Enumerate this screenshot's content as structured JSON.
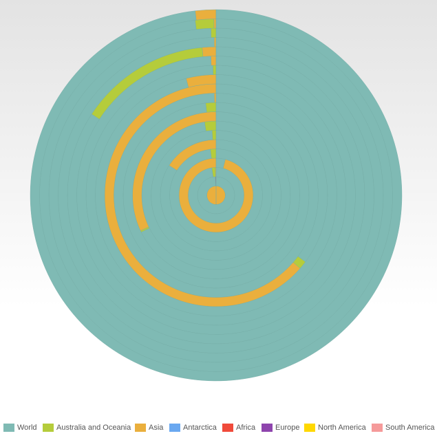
{
  "chart_data": {
    "type": "radial-stacked-bar",
    "categories": [
      null,
      null,
      null,
      null,
      null,
      null,
      null,
      null,
      null,
      null,
      null,
      null,
      null,
      null,
      null,
      null,
      null,
      null,
      null,
      null
    ],
    "series": [
      {
        "name": "World",
        "color": "#7fbab4",
        "values": [
          0,
          99.2,
          97.5,
          4,
          98,
          84,
          99,
          97.5,
          67.7,
          98.2,
          99.7,
          35.2,
          96,
          99.6,
          99.4,
          84.2,
          99.8,
          99.5,
          98.1,
          98.2
        ]
      },
      {
        "name": "Australia and Oceania",
        "color": "#b5cc3b",
        "values": [
          0,
          0,
          2,
          0,
          2,
          0,
          1,
          2.5,
          0.3,
          1.8,
          0,
          1.2,
          0,
          0.4,
          0,
          14.3,
          0,
          0.5,
          1.7,
          0
        ]
      },
      {
        "name": "Asia",
        "color": "#eaaf3d",
        "values": [
          100,
          0,
          0.5,
          96,
          0,
          16,
          0,
          0,
          32,
          0,
          0.3,
          63.6,
          4,
          0,
          0.6,
          1.5,
          0.2,
          0,
          0.2,
          1.8
        ]
      },
      {
        "name": "Antarctica",
        "color": "#6aa8f0",
        "values": [
          0,
          0,
          0,
          0,
          0,
          0,
          0,
          0,
          0,
          0,
          0,
          0,
          0,
          0,
          0,
          0,
          0,
          0,
          0,
          0
        ]
      },
      {
        "name": "Africa",
        "color": "#f04a3a",
        "values": [
          0,
          0.3,
          0,
          0,
          0,
          0,
          0,
          0,
          0,
          0,
          0,
          0,
          0,
          0,
          0,
          0,
          0,
          0,
          0,
          0
        ]
      },
      {
        "name": "Europe",
        "color": "#8e44ad",
        "values": [
          0,
          0.5,
          0,
          0,
          0,
          0,
          0,
          0,
          0,
          0,
          0,
          0,
          0,
          0,
          0,
          0,
          0,
          0,
          0,
          0
        ]
      },
      {
        "name": "North America",
        "color": "#ffd800",
        "values": [
          0,
          0,
          0,
          0,
          0,
          0,
          0,
          0,
          0,
          0,
          0,
          0,
          0,
          0,
          0,
          0,
          0,
          0,
          0,
          0
        ]
      },
      {
        "name": "South America",
        "color": "#f59a9a",
        "values": [
          0,
          0,
          0,
          0,
          0,
          0,
          0,
          0,
          0,
          0,
          0,
          0,
          0,
          0,
          0,
          0,
          0,
          0,
          0,
          0
        ]
      }
    ],
    "legend": "bottom"
  }
}
